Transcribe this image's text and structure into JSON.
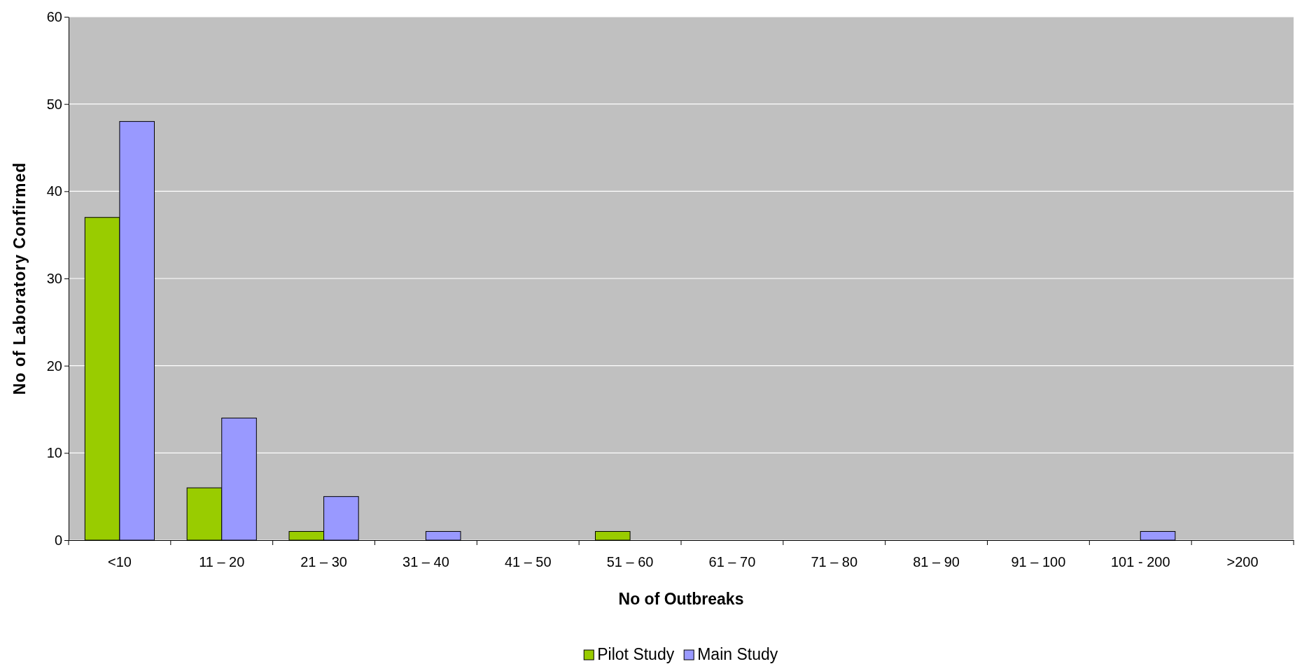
{
  "chart_data": {
    "type": "bar",
    "xlabel": "No of Outbreaks",
    "ylabel": "No of Laboratory Confirmed",
    "categories": [
      "<10",
      "11 – 20",
      "21 – 30",
      "31 – 40",
      "41 – 50",
      "51 – 60",
      "61 – 70",
      "71 – 80",
      "81 – 90",
      "91 – 100",
      "101 - 200",
      ">200"
    ],
    "series": [
      {
        "name": "Pilot Study",
        "color": "#99cc00",
        "values": [
          37,
          6,
          1,
          0,
          0,
          1,
          0,
          0,
          0,
          0,
          0,
          0
        ]
      },
      {
        "name": "Main Study",
        "color": "#9999ff",
        "values": [
          48,
          14,
          5,
          1,
          0,
          0,
          0,
          0,
          0,
          0,
          1,
          0
        ]
      }
    ],
    "ylim": [
      0,
      60
    ],
    "yticks": [
      0,
      10,
      20,
      30,
      40,
      50,
      60
    ],
    "grid": "y",
    "legend": "bottom"
  }
}
